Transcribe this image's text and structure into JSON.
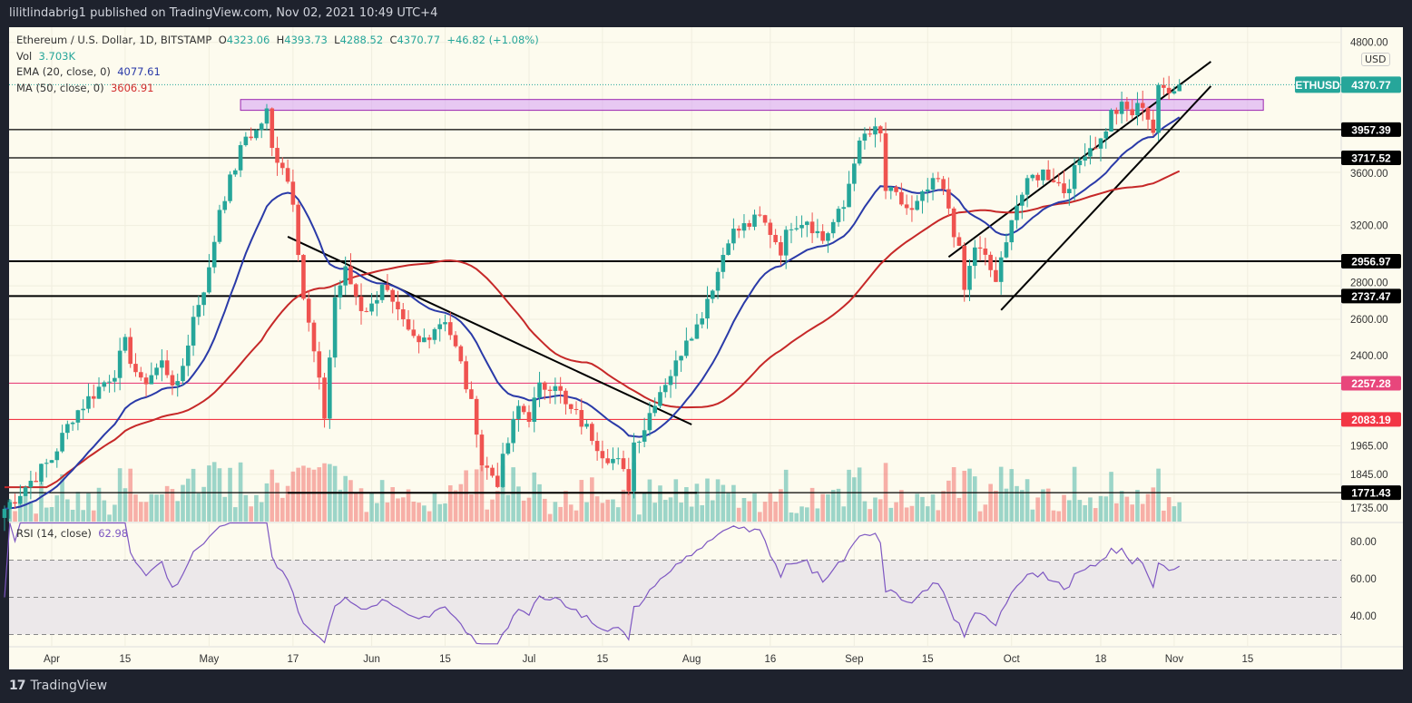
{
  "header": {
    "published": "lilitlindabrig1 published on TradingView.com, Nov 02, 2021 10:49 UTC+4"
  },
  "legend": {
    "symbol": "Ethereum / U.S. Dollar, 1D, BITSTAMP",
    "open_label": "O",
    "open": "4323.06",
    "high_label": "H",
    "high": "4393.73",
    "low_label": "L",
    "low": "4288.52",
    "close_label": "C",
    "close": "4370.77",
    "change": "+46.82 (+1.08%)",
    "vol_label": "Vol",
    "vol": "3.703K",
    "ema_label": "EMA (20, close, 0)",
    "ema": "4077.61",
    "ma_label": "MA (50, close, 0)",
    "ma": "3606.91"
  },
  "rsi_legend": {
    "label": "RSI (14, close)",
    "value": "62.98"
  },
  "currency": "USD",
  "footer": {
    "logo": "17",
    "brand": "TradingView"
  },
  "colors": {
    "up": "#26a69a",
    "down": "#ef5350",
    "ema": "#2a3aa8",
    "ma": "#c62828",
    "rsi": "#7e57c2",
    "zone": "#d59ef5",
    "pink_level": "#e8467c",
    "red_level": "#f23645",
    "price_tag": "#26a69a"
  },
  "chart_data": {
    "type": "candlestick",
    "symbol_tag": "ETHUSD",
    "last_price": "4370.77",
    "y_scale": "log",
    "ylim": [
      1700,
      4900
    ],
    "y_ticks": [
      "4800.00",
      "3600.00",
      "3200.00",
      "2800.00",
      "2600.00",
      "2400.00",
      "1965.00",
      "1845.00",
      "1735.00"
    ],
    "x_ticks": [
      {
        "label": "Apr",
        "date": "2021-04-01"
      },
      {
        "label": "15",
        "date": "2021-04-15"
      },
      {
        "label": "May",
        "date": "2021-05-01"
      },
      {
        "label": "17",
        "date": "2021-05-17"
      },
      {
        "label": "Jun",
        "date": "2021-06-01"
      },
      {
        "label": "15",
        "date": "2021-06-15"
      },
      {
        "label": "Jul",
        "date": "2021-07-01"
      },
      {
        "label": "15",
        "date": "2021-07-15"
      },
      {
        "label": "Aug",
        "date": "2021-08-01"
      },
      {
        "label": "16",
        "date": "2021-08-16"
      },
      {
        "label": "Sep",
        "date": "2021-09-01"
      },
      {
        "label": "15",
        "date": "2021-09-15"
      },
      {
        "label": "Oct",
        "date": "2021-10-01"
      },
      {
        "label": "18",
        "date": "2021-10-18"
      },
      {
        "label": "Nov",
        "date": "2021-11-01"
      },
      {
        "label": "15",
        "date": "2021-11-15"
      }
    ],
    "closes": [
      [
        "2021-03-23",
        1710
      ],
      [
        "2021-04-01",
        1910
      ],
      [
        "2021-04-05",
        2100
      ],
      [
        "2021-04-13",
        2320
      ],
      [
        "2021-04-15",
        2460
      ],
      [
        "2021-04-18",
        2250
      ],
      [
        "2021-04-22",
        2360
      ],
      [
        "2021-04-25",
        2230
      ],
      [
        "2021-04-28",
        2610
      ],
      [
        "2021-05-01",
        2890
      ],
      [
        "2021-05-03",
        3330
      ],
      [
        "2021-05-05",
        3530
      ],
      [
        "2021-05-08",
        3900
      ],
      [
        "2021-05-10",
        3940
      ],
      [
        "2021-05-12",
        4110
      ],
      [
        "2021-05-13",
        3780
      ],
      [
        "2021-05-15",
        3670
      ],
      [
        "2021-05-17",
        3400
      ],
      [
        "2021-05-19",
        2730
      ],
      [
        "2021-05-21",
        2410
      ],
      [
        "2021-05-23",
        2100
      ],
      [
        "2021-05-25",
        2730
      ],
      [
        "2021-05-27",
        2890
      ],
      [
        "2021-05-30",
        2670
      ],
      [
        "2021-06-01",
        2670
      ],
      [
        "2021-06-03",
        2830
      ],
      [
        "2021-06-05",
        2670
      ],
      [
        "2021-06-08",
        2510
      ],
      [
        "2021-06-10",
        2460
      ],
      [
        "2021-06-13",
        2560
      ],
      [
        "2021-06-15",
        2610
      ],
      [
        "2021-06-18",
        2350
      ],
      [
        "2021-06-21",
        2050
      ],
      [
        "2021-06-22",
        1890
      ],
      [
        "2021-06-25",
        1820
      ],
      [
        "2021-06-27",
        1980
      ],
      [
        "2021-06-29",
        2140
      ],
      [
        "2021-07-01",
        2100
      ],
      [
        "2021-07-03",
        2230
      ],
      [
        "2021-07-06",
        2270
      ],
      [
        "2021-07-08",
        2140
      ],
      [
        "2021-07-10",
        2100
      ],
      [
        "2021-07-13",
        2010
      ],
      [
        "2021-07-15",
        1940
      ],
      [
        "2021-07-18",
        1890
      ],
      [
        "2021-07-20",
        1800
      ],
      [
        "2021-07-21",
        1980
      ],
      [
        "2021-07-23",
        2050
      ],
      [
        "2021-07-25",
        2180
      ],
      [
        "2021-07-27",
        2270
      ],
      [
        "2021-07-29",
        2350
      ],
      [
        "2021-07-31",
        2510
      ],
      [
        "2021-08-02",
        2560
      ],
      [
        "2021-08-04",
        2730
      ],
      [
        "2021-08-06",
        2890
      ],
      [
        "2021-08-08",
        3130
      ],
      [
        "2021-08-11",
        3190
      ],
      [
        "2021-08-14",
        3250
      ],
      [
        "2021-08-16",
        3160
      ],
      [
        "2021-08-18",
        3040
      ],
      [
        "2021-08-20",
        3220
      ],
      [
        "2021-08-23",
        3250
      ],
      [
        "2021-08-26",
        3100
      ],
      [
        "2021-08-28",
        3220
      ],
      [
        "2021-08-30",
        3330
      ],
      [
        "2021-09-01",
        3720
      ],
      [
        "2021-09-03",
        3900
      ],
      [
        "2021-09-05",
        3930
      ],
      [
        "2021-09-06",
        3900
      ],
      [
        "2021-09-07",
        3460
      ],
      [
        "2021-09-09",
        3400
      ],
      [
        "2021-09-12",
        3290
      ],
      [
        "2021-09-15",
        3460
      ],
      [
        "2021-09-17",
        3530
      ],
      [
        "2021-09-19",
        3330
      ],
      [
        "2021-09-21",
        3010
      ],
      [
        "2021-09-22",
        2770
      ],
      [
        "2021-09-24",
        3060
      ],
      [
        "2021-09-26",
        2970
      ],
      [
        "2021-09-28",
        2830
      ],
      [
        "2021-09-30",
        3060
      ],
      [
        "2021-10-01",
        3290
      ],
      [
        "2021-10-03",
        3430
      ],
      [
        "2021-10-05",
        3560
      ],
      [
        "2021-10-07",
        3600
      ],
      [
        "2021-10-09",
        3560
      ],
      [
        "2021-10-11",
        3460
      ],
      [
        "2021-10-13",
        3600
      ],
      [
        "2021-10-15",
        3790
      ],
      [
        "2021-10-18",
        3860
      ],
      [
        "2021-10-20",
        4100
      ],
      [
        "2021-10-22",
        4150
      ],
      [
        "2021-10-24",
        4100
      ],
      [
        "2021-10-26",
        4200
      ],
      [
        "2021-10-28",
        3940
      ],
      [
        "2021-10-29",
        4310
      ],
      [
        "2021-10-31",
        4350
      ],
      [
        "2021-11-02",
        4370.77
      ]
    ],
    "levels": [
      {
        "price": 3957.39,
        "label": "3957.39",
        "color": "#000000"
      },
      {
        "price": 3717.52,
        "label": "3717.52",
        "color": "#000000"
      },
      {
        "price": 2956.97,
        "label": "2956.97",
        "color": "#000000"
      },
      {
        "price": 2737.47,
        "label": "2737.47",
        "color": "#000000"
      },
      {
        "price": 2257.28,
        "label": "2257.28",
        "color": "#e8467c"
      },
      {
        "price": 2083.19,
        "label": "2083.19",
        "color": "#f23645"
      },
      {
        "price": 1771.43,
        "label": "1771.43",
        "color": "#000000"
      }
    ],
    "zone": {
      "from": "2021-05-07",
      "to": "2021-11-18",
      "low": 4130,
      "high": 4230
    },
    "trendlines": [
      {
        "from": [
          "2021-05-16",
          3122
        ],
        "to": [
          "2021-08-01",
          2060
        ]
      },
      {
        "from": [
          "2021-05-16",
          1771
        ],
        "to": [
          "2021-08-02",
          1771
        ]
      },
      {
        "from": [
          "2021-09-19",
          2985
        ],
        "to": [
          "2021-11-08",
          4600
        ]
      },
      {
        "from": [
          "2021-09-29",
          2654
        ],
        "to": [
          "2021-11-08",
          4357
        ]
      }
    ],
    "indicators": [
      "EMA 20",
      "MA 50",
      "Volume",
      "RSI 14"
    ],
    "rsi_ticks": [
      "80.00",
      "60.00",
      "40.00"
    ],
    "rsi_bands": [
      70,
      50,
      30
    ]
  }
}
